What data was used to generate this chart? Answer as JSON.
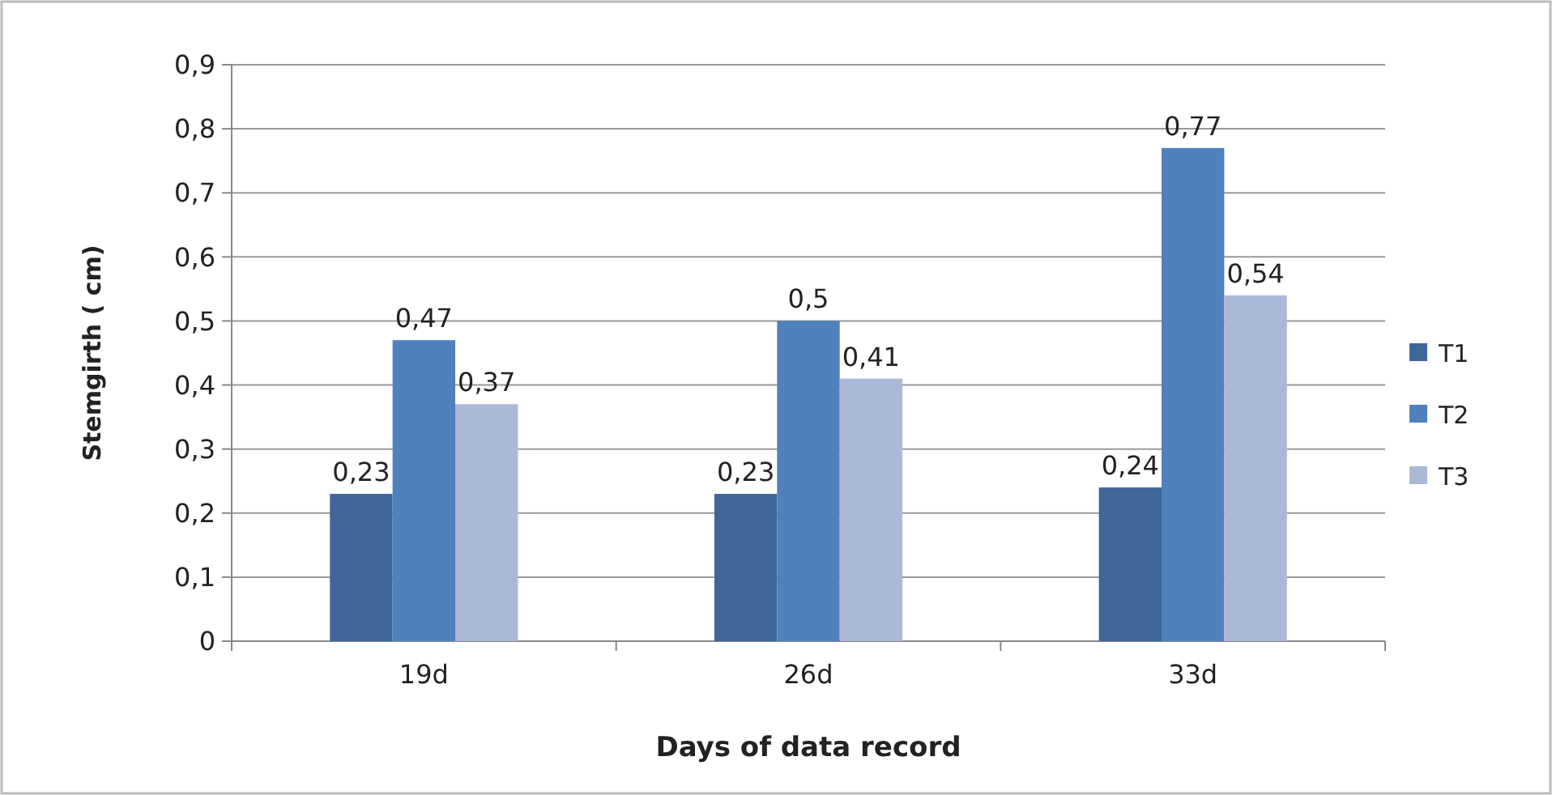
{
  "chart_data": {
    "type": "bar",
    "xlabel": "Days of data record",
    "ylabel": "Stemgirth ( cm)",
    "categories": [
      "19d",
      "26d",
      "33d"
    ],
    "series": [
      {
        "name": "T1",
        "color": "#3f6599",
        "values": [
          0.23,
          0.23,
          0.24
        ],
        "value_labels": [
          "0,23",
          "0,23",
          "0,24"
        ]
      },
      {
        "name": "T2",
        "color": "#4f81bd",
        "values": [
          0.47,
          0.5,
          0.77
        ],
        "value_labels": [
          "0,47",
          "0,5",
          "0,77"
        ]
      },
      {
        "name": "T3",
        "color": "#aab9d8",
        "values": [
          0.37,
          0.41,
          0.54
        ],
        "value_labels": [
          "0,37",
          "0,41",
          "0,54"
        ]
      }
    ],
    "ylim": [
      0,
      0.9
    ],
    "yticks": [
      0,
      {
        "value": 0.1,
        "label": "0,1"
      },
      {
        "value": 0.2,
        "label": "0,2"
      },
      {
        "value": 0.3,
        "label": "0,3"
      },
      {
        "value": 0.4,
        "label": "0,4"
      },
      {
        "value": 0.5,
        "label": "0,5"
      },
      {
        "value": 0.6,
        "label": "0,6"
      },
      {
        "value": 0.7,
        "label": "0,7"
      },
      {
        "value": 0.8,
        "label": "0,8"
      },
      {
        "value": 0.9,
        "label": "0,9"
      }
    ],
    "grid": "y",
    "legend": "right"
  }
}
